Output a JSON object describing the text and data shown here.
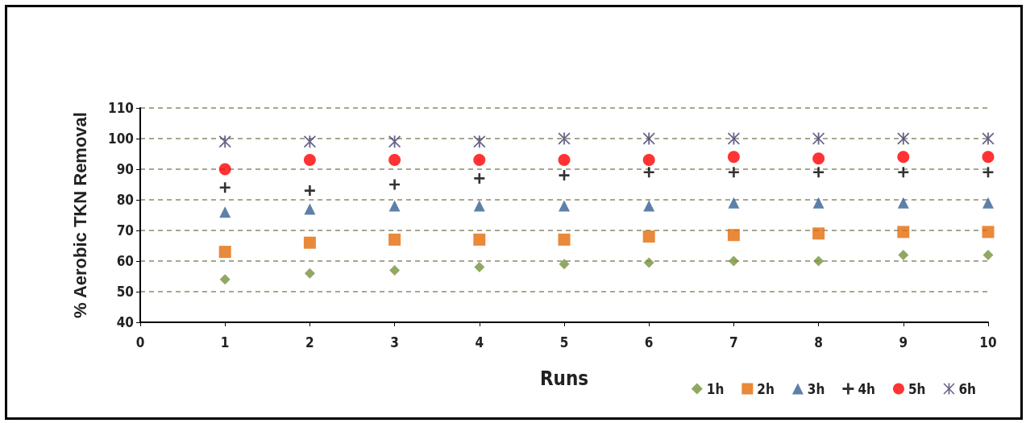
{
  "chart_data": {
    "type": "scatter",
    "xlabel": "Runs",
    "ylabel": "% Aerobic TKN Removal",
    "x": [
      1,
      2,
      3,
      4,
      5,
      6,
      7,
      8,
      9,
      10
    ],
    "xlim": [
      0,
      10
    ],
    "xticks": [
      0,
      1,
      2,
      3,
      4,
      5,
      6,
      7,
      8,
      9,
      10
    ],
    "ylim": [
      40,
      110
    ],
    "yticks": [
      40,
      50,
      60,
      70,
      80,
      90,
      100,
      110
    ],
    "grid": "y",
    "legend": "bottom right",
    "series": [
      {
        "name": "1h",
        "color": "#76923c",
        "marker": "diamond",
        "values": [
          54,
          56,
          57,
          58,
          59,
          59.5,
          60,
          60,
          62,
          62
        ]
      },
      {
        "name": "2h",
        "color": "#e36c09",
        "marker": "square",
        "values": [
          63,
          66,
          67,
          67,
          67,
          68,
          68.5,
          69,
          69.5,
          69.5
        ]
      },
      {
        "name": "3h",
        "color": "#366092",
        "marker": "triangle",
        "values": [
          76,
          77,
          78,
          78,
          78,
          78,
          79,
          79,
          79,
          79
        ]
      },
      {
        "name": "4h",
        "color": "#000000",
        "marker": "cross",
        "values": [
          84,
          83,
          85,
          87,
          88,
          89,
          89,
          89,
          89,
          89
        ]
      },
      {
        "name": "5h",
        "color": "#ff0000",
        "marker": "circle",
        "values": [
          90,
          93,
          93,
          93,
          93,
          93,
          94,
          93.5,
          94,
          94
        ]
      },
      {
        "name": "6h",
        "color": "#403c6c",
        "marker": "star",
        "values": [
          99,
          99,
          99,
          99,
          100,
          100,
          100,
          100,
          100,
          100
        ]
      }
    ]
  }
}
